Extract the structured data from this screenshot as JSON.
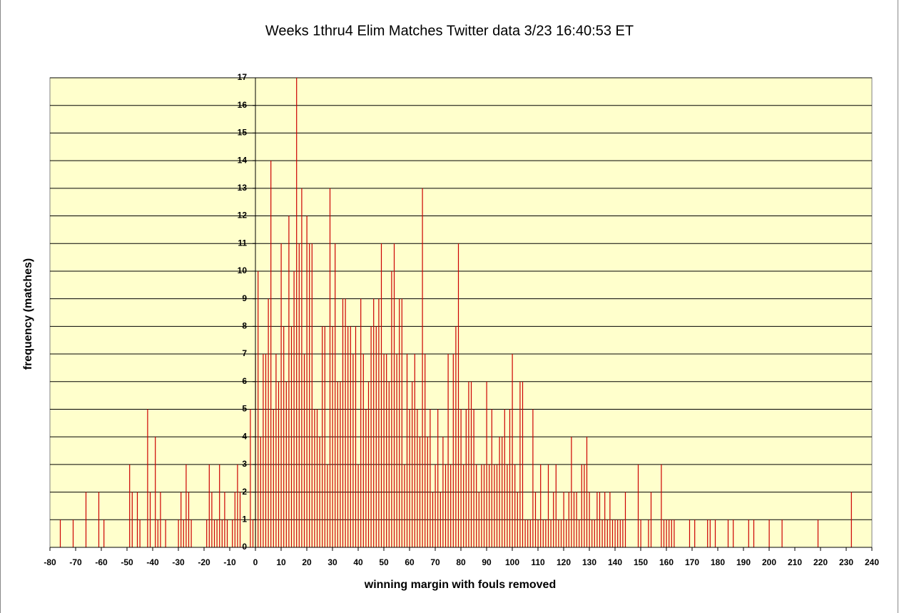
{
  "chart_data": {
    "type": "bar",
    "title": "Weeks 1thru4 Elim Matches Twitter data 3/23 16:40:53 ET",
    "x_label": "winning margin with fouls removed",
    "y_label": "frequency (matches)",
    "color": "#cc0000",
    "plot_background": "#ffffcc",
    "grid": true,
    "xlim": [
      -80,
      240
    ],
    "ylim": [
      0,
      17
    ],
    "xticks": [
      -80,
      -70,
      -60,
      -50,
      -40,
      -30,
      -20,
      -10,
      0,
      10,
      20,
      30,
      40,
      50,
      60,
      70,
      80,
      90,
      100,
      110,
      120,
      130,
      140,
      150,
      160,
      170,
      180,
      190,
      200,
      210,
      220,
      230,
      240
    ],
    "yticks": [
      0,
      1,
      2,
      3,
      4,
      5,
      6,
      7,
      8,
      9,
      10,
      11,
      12,
      13,
      14,
      15,
      16,
      17
    ],
    "x": [
      -76,
      -71,
      -66,
      -61,
      -59,
      -49,
      -48,
      -46,
      -45,
      -42,
      -41,
      -39,
      -38,
      -37,
      -35,
      -30,
      -29,
      -28,
      -27,
      -26,
      -25,
      -19,
      -18,
      -17,
      -16,
      -15,
      -14,
      -13,
      -12,
      -11,
      -9,
      -8,
      -7,
      -6,
      -2,
      -1,
      0,
      1,
      2,
      3,
      4,
      5,
      6,
      7,
      8,
      9,
      10,
      11,
      12,
      13,
      14,
      15,
      16,
      17,
      18,
      19,
      20,
      21,
      22,
      23,
      24,
      25,
      26,
      27,
      28,
      29,
      30,
      31,
      32,
      33,
      34,
      35,
      36,
      37,
      38,
      39,
      40,
      41,
      42,
      43,
      44,
      45,
      46,
      47,
      48,
      49,
      50,
      51,
      52,
      53,
      54,
      55,
      56,
      57,
      58,
      59,
      60,
      61,
      62,
      63,
      64,
      65,
      66,
      67,
      68,
      69,
      70,
      71,
      72,
      73,
      74,
      75,
      76,
      77,
      78,
      79,
      80,
      81,
      82,
      83,
      84,
      85,
      86,
      87,
      88,
      89,
      90,
      91,
      92,
      93,
      94,
      95,
      96,
      97,
      98,
      99,
      100,
      101,
      102,
      103,
      104,
      105,
      106,
      107,
      108,
      109,
      110,
      111,
      112,
      113,
      114,
      115,
      116,
      117,
      118,
      119,
      120,
      121,
      122,
      123,
      124,
      125,
      126,
      127,
      128,
      129,
      130,
      131,
      132,
      133,
      134,
      135,
      136,
      137,
      138,
      139,
      140,
      141,
      142,
      143,
      144,
      149,
      150,
      153,
      154,
      158,
      159,
      160,
      161,
      162,
      163,
      169,
      171,
      176,
      177,
      179,
      184,
      186,
      192,
      194,
      200,
      205,
      219,
      232
    ],
    "values": [
      1,
      1,
      2,
      2,
      1,
      3,
      2,
      2,
      1,
      5,
      2,
      4,
      1,
      2,
      1,
      1,
      2,
      1,
      3,
      2,
      1,
      1,
      3,
      2,
      1,
      1,
      3,
      1,
      2,
      1,
      1,
      2,
      3,
      2,
      5,
      1,
      7,
      10,
      4,
      7,
      7,
      9,
      14,
      5,
      7,
      6,
      11,
      8,
      6,
      12,
      8,
      10,
      17,
      11,
      13,
      7,
      12,
      11,
      11,
      5,
      5,
      4,
      8,
      8,
      3,
      13,
      8,
      11,
      6,
      6,
      9,
      9,
      8,
      8,
      7,
      8,
      3,
      9,
      7,
      5,
      6,
      8,
      9,
      8,
      9,
      11,
      7,
      7,
      6,
      10,
      11,
      7,
      9,
      9,
      3,
      7,
      5,
      6,
      7,
      5,
      4,
      13,
      7,
      4,
      5,
      2,
      3,
      5,
      2,
      4,
      3,
      7,
      3,
      7,
      8,
      11,
      5,
      3,
      5,
      6,
      6,
      5,
      3,
      2,
      3,
      3,
      6,
      3,
      5,
      3,
      3,
      4,
      4,
      5,
      3,
      5,
      7,
      3,
      2,
      6,
      6,
      1,
      1,
      1,
      5,
      2,
      1,
      3,
      1,
      1,
      3,
      1,
      2,
      3,
      1,
      1,
      2,
      1,
      2,
      4,
      2,
      2,
      1,
      3,
      3,
      4,
      2,
      1,
      1,
      2,
      2,
      1,
      2,
      1,
      2,
      1,
      1,
      1,
      1,
      1,
      2,
      3,
      1,
      1,
      2,
      3,
      1,
      1,
      1,
      1,
      1,
      1,
      1,
      1,
      1,
      1,
      1,
      1,
      1,
      1,
      1,
      1,
      1,
      2
    ]
  }
}
